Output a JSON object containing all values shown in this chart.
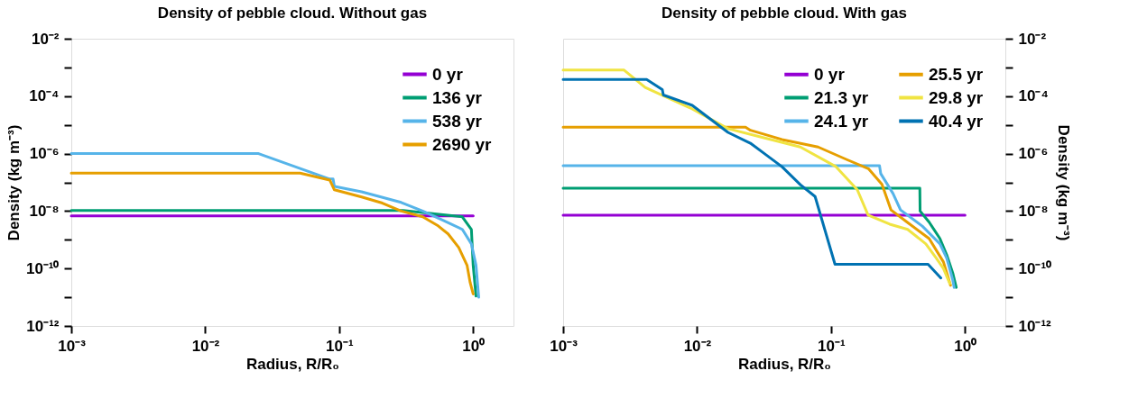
{
  "chart_data": [
    {
      "type": "line",
      "title": "Density of pebble cloud. Without gas",
      "xlabel": "Radius, R/R₀",
      "ylabel": "Density (kg m⁻³)",
      "log": "xy",
      "legend": "top right",
      "grid": false,
      "xlim": [
        0.001,
        2
      ],
      "xticks": [
        {
          "value": 0.001,
          "label": "10⁻³"
        },
        {
          "value": 0.01,
          "label": "10⁻²"
        },
        {
          "value": 0.1,
          "label": "10⁻¹"
        },
        {
          "value": 1,
          "label": "10⁰"
        }
      ],
      "ylim": [
        1e-12,
        0.01
      ],
      "yticks": [
        {
          "value": 1e-12,
          "label": "10⁻¹²"
        },
        {
          "value": 1e-11,
          "label": null
        },
        {
          "value": 1e-10,
          "label": "10⁻¹⁰"
        },
        {
          "value": 1e-09,
          "label": null
        },
        {
          "value": 1e-08,
          "label": "10⁻⁸"
        },
        {
          "value": 1e-07,
          "label": null
        },
        {
          "value": 1e-06,
          "label": "10⁻⁶"
        },
        {
          "value": 1e-05,
          "label": null
        },
        {
          "value": 0.0001,
          "label": "10⁻⁴"
        },
        {
          "value": 0.001,
          "label": null
        },
        {
          "value": 0.01,
          "label": "10⁻²"
        }
      ],
      "series": [
        {
          "name": "0 yr",
          "color": "#9400d3",
          "x": [
            0.001,
            1.0
          ],
          "values": [
            6.8e-09,
            6.8e-09
          ]
        },
        {
          "name": "136 yr",
          "color": "#009e73",
          "x": [
            0.001,
            0.3,
            0.83,
            0.97,
            1.0,
            1.05
          ],
          "values": [
            1.05e-08,
            1.05e-08,
            6.3e-09,
            2.3e-09,
            1.3e-10,
            1.1e-11
          ]
        },
        {
          "name": "538 yr",
          "color": "#56b4e9",
          "x": [
            0.001,
            0.025,
            0.085,
            0.09,
            0.092,
            0.147,
            0.29,
            0.42,
            0.6,
            0.83,
            0.97,
            1.05,
            1.1
          ],
          "values": [
            1e-06,
            1e-06,
            1.3e-07,
            1.3e-07,
            7.2e-08,
            4.7e-08,
            2e-08,
            1e-08,
            4.7e-09,
            2.3e-09,
            7.2e-10,
            1.3e-10,
            1e-11
          ]
        },
        {
          "name": "2690 yr",
          "color": "#e69f00",
          "x": [
            0.001,
            0.051,
            0.085,
            0.092,
            0.147,
            0.21,
            0.29,
            0.42,
            0.54,
            0.65,
            0.78,
            0.9,
            0.95,
            1.0
          ],
          "values": [
            2.1e-07,
            2.1e-07,
            1.2e-07,
            5.5e-08,
            3.1e-08,
            1.9e-08,
            1e-08,
            6.3e-09,
            3.2e-09,
            1.6e-09,
            5.4e-10,
            1.3e-10,
            3.2e-11,
            1.3e-11
          ]
        }
      ]
    },
    {
      "type": "line",
      "title": "Density of pebble cloud. With gas",
      "xlabel": "Radius, R/R₀",
      "ylabel": "Density (kg m⁻³)",
      "log": "xy",
      "legend": "top right",
      "grid": false,
      "xlim": [
        0.001,
        2
      ],
      "xticks": [
        {
          "value": 0.001,
          "label": "10⁻³"
        },
        {
          "value": 0.01,
          "label": "10⁻²"
        },
        {
          "value": 0.1,
          "label": "10⁻¹"
        },
        {
          "value": 1,
          "label": "10⁰"
        }
      ],
      "ylim": [
        1e-12,
        0.01
      ],
      "yticks": [
        {
          "value": 1e-12,
          "label": "10⁻¹²"
        },
        {
          "value": 1e-11,
          "label": null
        },
        {
          "value": 1e-10,
          "label": "10⁻¹⁰"
        },
        {
          "value": 1e-09,
          "label": null
        },
        {
          "value": 1e-08,
          "label": "10⁻⁸"
        },
        {
          "value": 1e-07,
          "label": null
        },
        {
          "value": 1e-06,
          "label": "10⁻⁶"
        },
        {
          "value": 1e-05,
          "label": null
        },
        {
          "value": 0.0001,
          "label": "10⁻⁴"
        },
        {
          "value": 0.001,
          "label": null
        },
        {
          "value": 0.01,
          "label": "10⁻²"
        }
      ],
      "series": [
        {
          "name": "0 yr",
          "color": "#9400d3",
          "x": [
            0.001,
            1.0
          ],
          "values": [
            7.2e-09,
            7.2e-09
          ]
        },
        {
          "name": "21.3 yr",
          "color": "#009e73",
          "x": [
            0.001,
            0.46,
            0.462,
            0.54,
            0.65,
            0.73,
            0.81,
            0.86
          ],
          "values": [
            6.2e-08,
            6.2e-08,
            1e-08,
            4.1e-09,
            1.1e-09,
            3e-10,
            7e-11,
            2.2e-11
          ]
        },
        {
          "name": "24.1 yr",
          "color": "#56b4e9",
          "x": [
            0.001,
            0.23,
            0.235,
            0.29,
            0.33,
            0.48,
            0.65,
            0.73,
            0.81,
            0.83
          ],
          "values": [
            3.8e-07,
            3.8e-07,
            2e-07,
            4.1e-08,
            1.1e-08,
            3e-09,
            7.2e-10,
            2.3e-10,
            4e-11,
            2.2e-11
          ]
        },
        {
          "name": "25.5 yr",
          "color": "#e69f00",
          "x": [
            0.001,
            0.023,
            0.025,
            0.043,
            0.08,
            0.13,
            0.19,
            0.24,
            0.28,
            0.37,
            0.54,
            0.69,
            0.78
          ],
          "values": [
            8.3e-06,
            8.3e-06,
            6.5e-06,
            3.1e-06,
            1.7e-06,
            6.3e-07,
            3e-07,
            8.5e-08,
            1.1e-08,
            4.1e-09,
            1.1e-09,
            1.7e-10,
            2.6e-11
          ]
        },
        {
          "name": "29.8 yr",
          "color": "#f0e442",
          "x": [
            0.001,
            0.00285,
            0.0041,
            0.0092,
            0.017,
            0.032,
            0.059,
            0.109,
            0.157,
            0.189,
            0.274,
            0.373,
            0.51,
            0.61,
            0.69,
            0.77
          ],
          "values": [
            0.00081,
            0.00081,
            0.0002,
            3.6e-05,
            7.4e-06,
            3.5e-06,
            1.7e-06,
            3.5e-07,
            5.5e-08,
            7.2e-09,
            3.5e-09,
            2.3e-09,
            7.2e-10,
            2.3e-10,
            1e-10,
            3e-11
          ]
        },
        {
          "name": "40.4 yr",
          "color": "#0072b2",
          "x": [
            0.001,
            0.0042,
            0.0055,
            0.0056,
            0.0092,
            0.017,
            0.025,
            0.032,
            0.043,
            0.059,
            0.076,
            0.107,
            0.53,
            0.66
          ],
          "values": [
            0.00038,
            0.00038,
            0.00017,
            0.00011,
            4.8e-05,
            5.5e-06,
            2.3e-06,
            9.8e-07,
            3.5e-07,
            8.3e-08,
            3.2e-08,
            1.4e-10,
            1.4e-10,
            4.7e-11
          ]
        }
      ]
    }
  ]
}
